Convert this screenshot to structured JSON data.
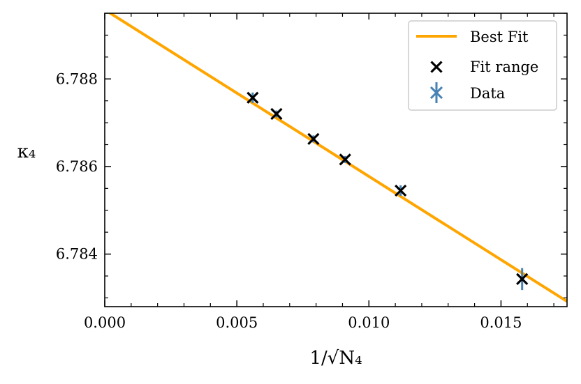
{
  "chart_data": {
    "type": "scatter",
    "title": "",
    "xlabel": "1/√N₄",
    "ylabel": "κ₄",
    "xlim": [
      0.0,
      0.0175
    ],
    "ylim": [
      6.7828,
      6.7895
    ],
    "x_ticks": [
      0.0,
      0.005,
      0.01,
      0.015
    ],
    "x_tick_labels": [
      "0.000",
      "0.005",
      "0.010",
      "0.015"
    ],
    "y_ticks": [
      6.784,
      6.786,
      6.788
    ],
    "y_tick_labels": [
      "6.784",
      "6.786",
      "6.788"
    ],
    "grid": false,
    "legend_position": "top-right",
    "series": [
      {
        "name": "Best Fit",
        "kind": "line",
        "color": "#ffa500",
        "x": [
          0.0,
          0.0175
        ],
        "y": [
          6.78958,
          6.78292
        ]
      },
      {
        "name": "Fit range",
        "kind": "marker-x",
        "color": "#000000",
        "x": [
          0.0056,
          0.0065,
          0.0079,
          0.0091,
          0.0112,
          0.0158
        ],
        "y": [
          6.78757,
          6.7872,
          6.78663,
          6.78616,
          6.78545,
          6.78343
        ]
      },
      {
        "name": "Data",
        "kind": "errorbar",
        "color": "#4682b4",
        "x": [
          0.0056,
          0.0065,
          0.0079,
          0.0091,
          0.0112,
          0.0158
        ],
        "y": [
          6.78757,
          6.7872,
          6.78663,
          6.78616,
          6.78545,
          6.78343
        ],
        "yerr": [
          0.00012,
          8e-05,
          8e-05,
          8e-05,
          0.00012,
          0.00025
        ]
      }
    ]
  }
}
